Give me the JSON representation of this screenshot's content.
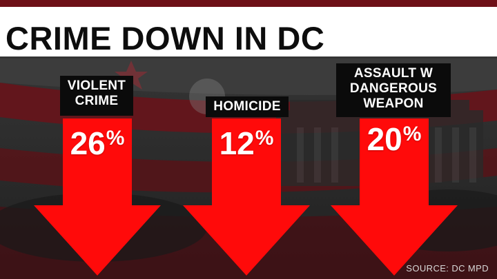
{
  "headline": "CRIME DOWN IN DC",
  "stats": [
    {
      "label_lines": [
        "VIOLENT",
        "CRIME"
      ],
      "percent": "26",
      "symbol": "%"
    },
    {
      "label_lines": [
        "HOMICIDE"
      ],
      "percent": "12",
      "symbol": "%"
    },
    {
      "label_lines": [
        "ASSAULT W",
        "DANGEROUS",
        "WEAPON"
      ],
      "percent": "20",
      "symbol": "%"
    }
  ],
  "source": "SOURCE: DC MPD",
  "colors": {
    "arrow": "#ff0a0a",
    "label_bg": "#0b0b0b",
    "title_bg": "#ffffff",
    "flag_red": "#8e1620"
  }
}
